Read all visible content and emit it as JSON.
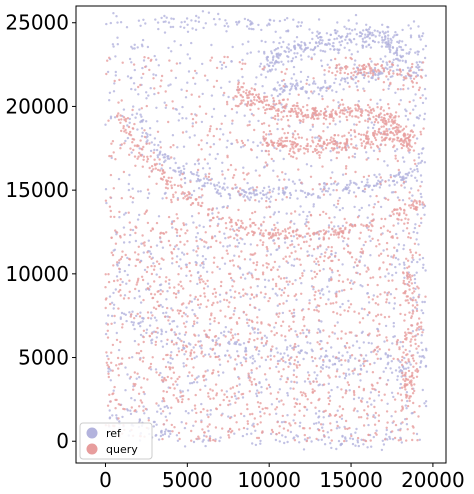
{
  "chart_data": {
    "type": "scatter",
    "title": "",
    "xlabel": "",
    "ylabel": "",
    "xlim": [
      -1800,
      20800
    ],
    "ylim": [
      -1300,
      26000
    ],
    "xticks": [
      0,
      5000,
      10000,
      15000,
      20000
    ],
    "yticks": [
      0,
      5000,
      10000,
      15000,
      20000,
      25000
    ],
    "xtick_labels": [
      "0",
      "5000",
      "10000",
      "15000",
      "20000"
    ],
    "ytick_labels": [
      "0",
      "5000",
      "10000",
      "15000",
      "20000",
      "25000"
    ],
    "grid": false,
    "legend": {
      "position": "bottom-left"
    },
    "series": [
      {
        "name": "ref",
        "color": "#b3b3dd",
        "bands": [
          {
            "desc": "upper arc of hippocampus",
            "path": [
              [
                9500,
                22600
              ],
              [
                12000,
                23500
              ],
              [
                15000,
                24200
              ],
              [
                17300,
                24000
              ],
              [
                18200,
                22800
              ]
            ],
            "width": 700,
            "n": 260
          },
          {
            "desc": "inner arc",
            "path": [
              [
                10300,
                21000
              ],
              [
                12500,
                21100
              ],
              [
                15000,
                21600
              ],
              [
                17500,
                22300
              ],
              [
                19000,
                21800
              ]
            ],
            "width": 450,
            "n": 140
          },
          {
            "desc": "dentate arc",
            "path": [
              [
                1800,
                19500
              ],
              [
                3000,
                17500
              ],
              [
                5000,
                15800
              ],
              [
                8000,
                14800
              ],
              [
                12000,
                14800
              ],
              [
                16000,
                15300
              ],
              [
                19300,
                16000
              ]
            ],
            "width": 400,
            "n": 260
          },
          {
            "desc": "top edge",
            "path": [
              [
                0,
                25000
              ],
              [
                4000,
                25200
              ],
              [
                8000,
                25000
              ],
              [
                12000,
                24800
              ]
            ],
            "width": 500,
            "n": 60
          },
          {
            "desc": "lower cortex ridge",
            "path": [
              [
                1000,
                7500
              ],
              [
                5000,
                6000
              ],
              [
                9000,
                5200
              ],
              [
                14000,
                4800
              ],
              [
                18500,
                4500
              ]
            ],
            "width": 900,
            "n": 140
          },
          {
            "desc": "bottom edge",
            "path": [
              [
                200,
                1500
              ],
              [
                2500,
                800
              ],
              [
                5000,
                200
              ],
              [
                9000,
                0
              ],
              [
                14000,
                0
              ],
              [
                18500,
                100
              ]
            ],
            "width": 500,
            "n": 90
          }
        ],
        "scatter_regions": [
          {
            "x": [
              0,
              19500
            ],
            "y": [
              0,
              13500
            ],
            "n": 820
          },
          {
            "x": [
              0,
              19500
            ],
            "y": [
              13500,
              25200
            ],
            "n": 520
          },
          {
            "x": [
              19000,
              19600
            ],
            "y": [
              2000,
              25000
            ],
            "n": 60
          }
        ]
      },
      {
        "name": "query",
        "color": "#e79d9d",
        "bands": [
          {
            "desc": "CA arc",
            "path": [
              [
                7800,
                21000
              ],
              [
                10000,
                20000
              ],
              [
                12500,
                19500
              ],
              [
                15000,
                19800
              ],
              [
                17300,
                19300
              ],
              [
                18500,
                17700
              ]
            ],
            "width": 550,
            "n": 330
          },
          {
            "desc": "lower arc",
            "path": [
              [
                9500,
                17800
              ],
              [
                12500,
                17600
              ],
              [
                15000,
                18000
              ],
              [
                17500,
                18200
              ],
              [
                18800,
                17800
              ]
            ],
            "width": 550,
            "n": 260
          },
          {
            "desc": "upper right streak",
            "path": [
              [
                14000,
                22200
              ],
              [
                16000,
                22200
              ],
              [
                18000,
                22000
              ],
              [
                19000,
                21500
              ]
            ],
            "width": 400,
            "n": 80
          },
          {
            "desc": "dentate curve",
            "path": [
              [
                800,
                19500
              ],
              [
                2000,
                17500
              ],
              [
                4500,
                14900
              ],
              [
                7000,
                13300
              ],
              [
                10000,
                12300
              ],
              [
                14000,
                12400
              ],
              [
                17500,
                13300
              ],
              [
                19300,
                14300
              ]
            ],
            "width": 450,
            "n": 300
          },
          {
            "desc": "right vertical",
            "path": [
              [
                18500,
                10000
              ],
              [
                18800,
                7000
              ],
              [
                18600,
                4500
              ],
              [
                18300,
                2000
              ]
            ],
            "width": 500,
            "n": 110
          }
        ],
        "scatter_regions": [
          {
            "x": [
              0,
              19200
            ],
            "y": [
              0,
              13000
            ],
            "n": 1250
          },
          {
            "x": [
              0,
              19500
            ],
            "y": [
              13000,
              23000
            ],
            "n": 420
          }
        ]
      }
    ]
  }
}
